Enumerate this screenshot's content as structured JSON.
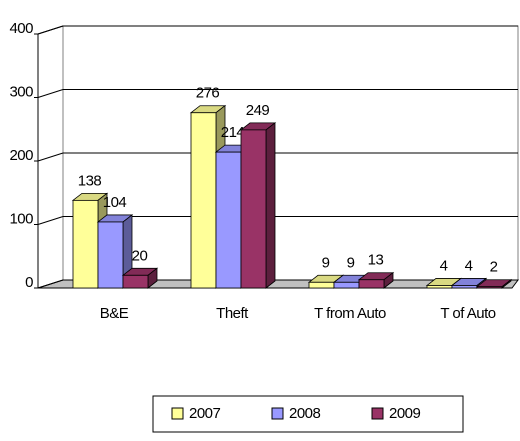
{
  "chart_data": {
    "type": "bar",
    "categories": [
      "B&E",
      "Theft",
      "T from Auto",
      "T of Auto"
    ],
    "series": [
      {
        "name": "2007",
        "color": "#ffff99",
        "values": [
          138,
          276,
          9,
          4
        ]
      },
      {
        "name": "2008",
        "color": "#9999ff",
        "values": [
          104,
          214,
          9,
          4
        ]
      },
      {
        "name": "2009",
        "color": "#993366",
        "values": [
          20,
          249,
          13,
          2
        ]
      }
    ],
    "ylim": [
      0,
      400
    ],
    "yticks": [
      0,
      100,
      200,
      300,
      400
    ],
    "grid": true,
    "legend": "bottom"
  }
}
